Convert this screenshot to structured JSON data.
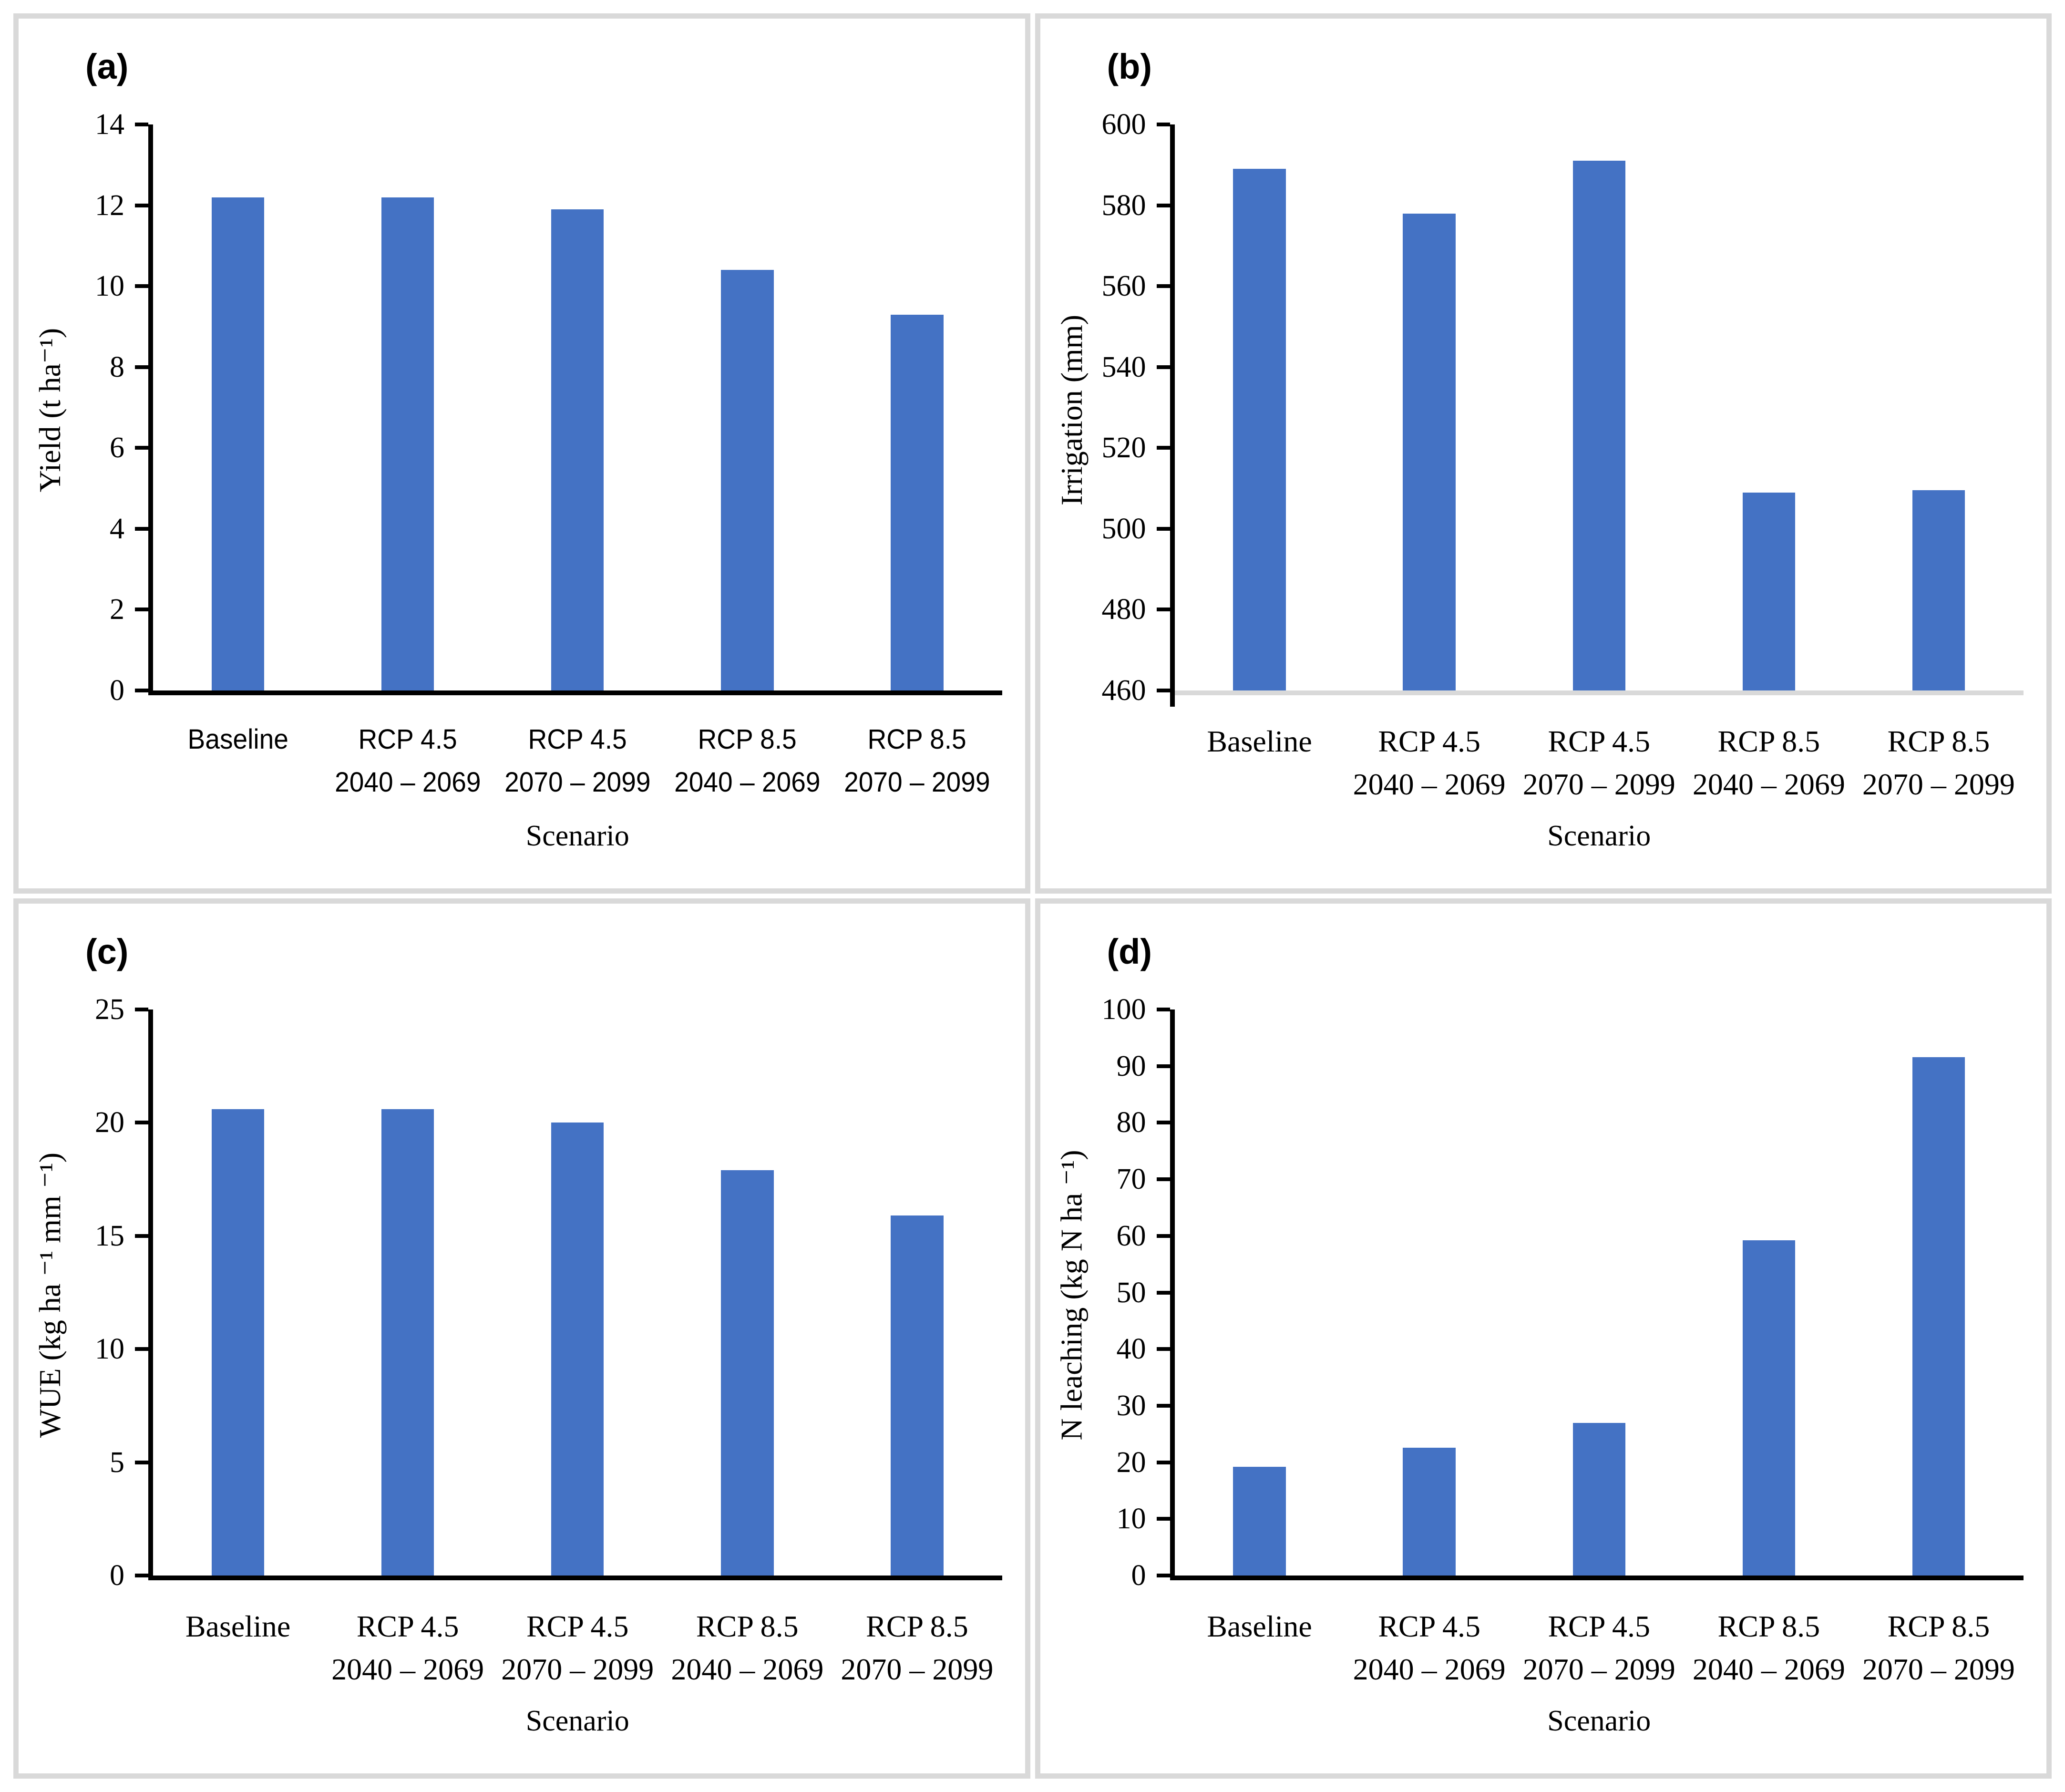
{
  "figure": {
    "background": "#ffffff",
    "frame_color": "#d9d9d9",
    "bar_color": "#4472C4"
  },
  "chart_data": [
    {
      "type": "bar",
      "panel_label": "(a)",
      "xlabel": "Scenario",
      "ylabel": "Yield (t ha⁻¹)",
      "ylim": [
        0,
        14
      ],
      "ytick_step": 2,
      "ytick_labels": [
        "0",
        "2",
        "4",
        "6",
        "8",
        "10",
        "12",
        "14"
      ],
      "categories": [
        "Baseline",
        "RCP 4.5",
        "RCP 4.5",
        "RCP 8.5",
        "RCP 8.5"
      ],
      "category_periods": [
        "",
        "2040 – 2069",
        "2070 – 2099",
        "2040 – 2069",
        "2070 – 2099"
      ],
      "values": [
        12.2,
        12.2,
        11.9,
        10.4,
        9.3
      ],
      "bar_color": "#4472C4",
      "y_axis_color": "#000000",
      "x_axis_color": "#000000",
      "grid": false,
      "legend": false
    },
    {
      "type": "bar",
      "panel_label": "(b)",
      "xlabel": "Scenario",
      "ylabel": "Irrigation (mm)",
      "ylim": [
        460,
        600
      ],
      "ytick_step": 20,
      "ytick_labels": [
        "460",
        "480",
        "500",
        "520",
        "540",
        "560",
        "580",
        "600"
      ],
      "categories": [
        "Baseline",
        "RCP 4.5",
        "RCP 4.5",
        "RCP 8.5",
        "RCP 8.5"
      ],
      "category_periods": [
        "",
        "2040 – 2069",
        "2070 – 2099",
        "2040 – 2069",
        "2070 – 2099"
      ],
      "values": [
        589,
        578,
        591,
        509,
        509.5
      ],
      "bar_color": "#4472C4",
      "y_axis_color": "#000000",
      "x_axis_color": "#d9d9d9",
      "grid": false,
      "legend": false
    },
    {
      "type": "bar",
      "panel_label": "(c)",
      "xlabel": "Scenario",
      "ylabel": "WUE (kg ha ⁻¹ mm ⁻¹)",
      "ylim": [
        0,
        25
      ],
      "ytick_step": 5,
      "ytick_labels": [
        "0",
        "5",
        "10",
        "15",
        "20",
        "25"
      ],
      "categories": [
        "Baseline",
        "RCP 4.5",
        "RCP 4.5",
        "RCP 8.5",
        "RCP 8.5"
      ],
      "category_periods": [
        "",
        "2040 – 2069",
        "2070 – 2099",
        "2040 – 2069",
        "2070 – 2099"
      ],
      "values": [
        20.6,
        20.6,
        20.0,
        17.9,
        15.9
      ],
      "bar_color": "#4472C4",
      "y_axis_color": "#000000",
      "x_axis_color": "#000000",
      "grid": false,
      "legend": false
    },
    {
      "type": "bar",
      "panel_label": "(d)",
      "xlabel": "Scenario",
      "ylabel": "N leaching (kg N ha ⁻¹)",
      "ylim": [
        0,
        100
      ],
      "ytick_step": 10,
      "ytick_labels": [
        "0",
        "10",
        "20",
        "30",
        "40",
        "50",
        "60",
        "70",
        "80",
        "90",
        "100"
      ],
      "categories": [
        "Baseline",
        "RCP 4.5",
        "RCP 4.5",
        "RCP 8.5",
        "RCP 8.5"
      ],
      "category_periods": [
        "",
        "2040 – 2069",
        "2070 – 2099",
        "2040 – 2069",
        "2070 – 2099"
      ],
      "values": [
        19.2,
        22.6,
        27.0,
        59.2,
        91.6
      ],
      "bar_color": "#4472C4",
      "y_axis_color": "#000000",
      "x_axis_color": "#000000",
      "grid": false,
      "legend": false
    }
  ]
}
